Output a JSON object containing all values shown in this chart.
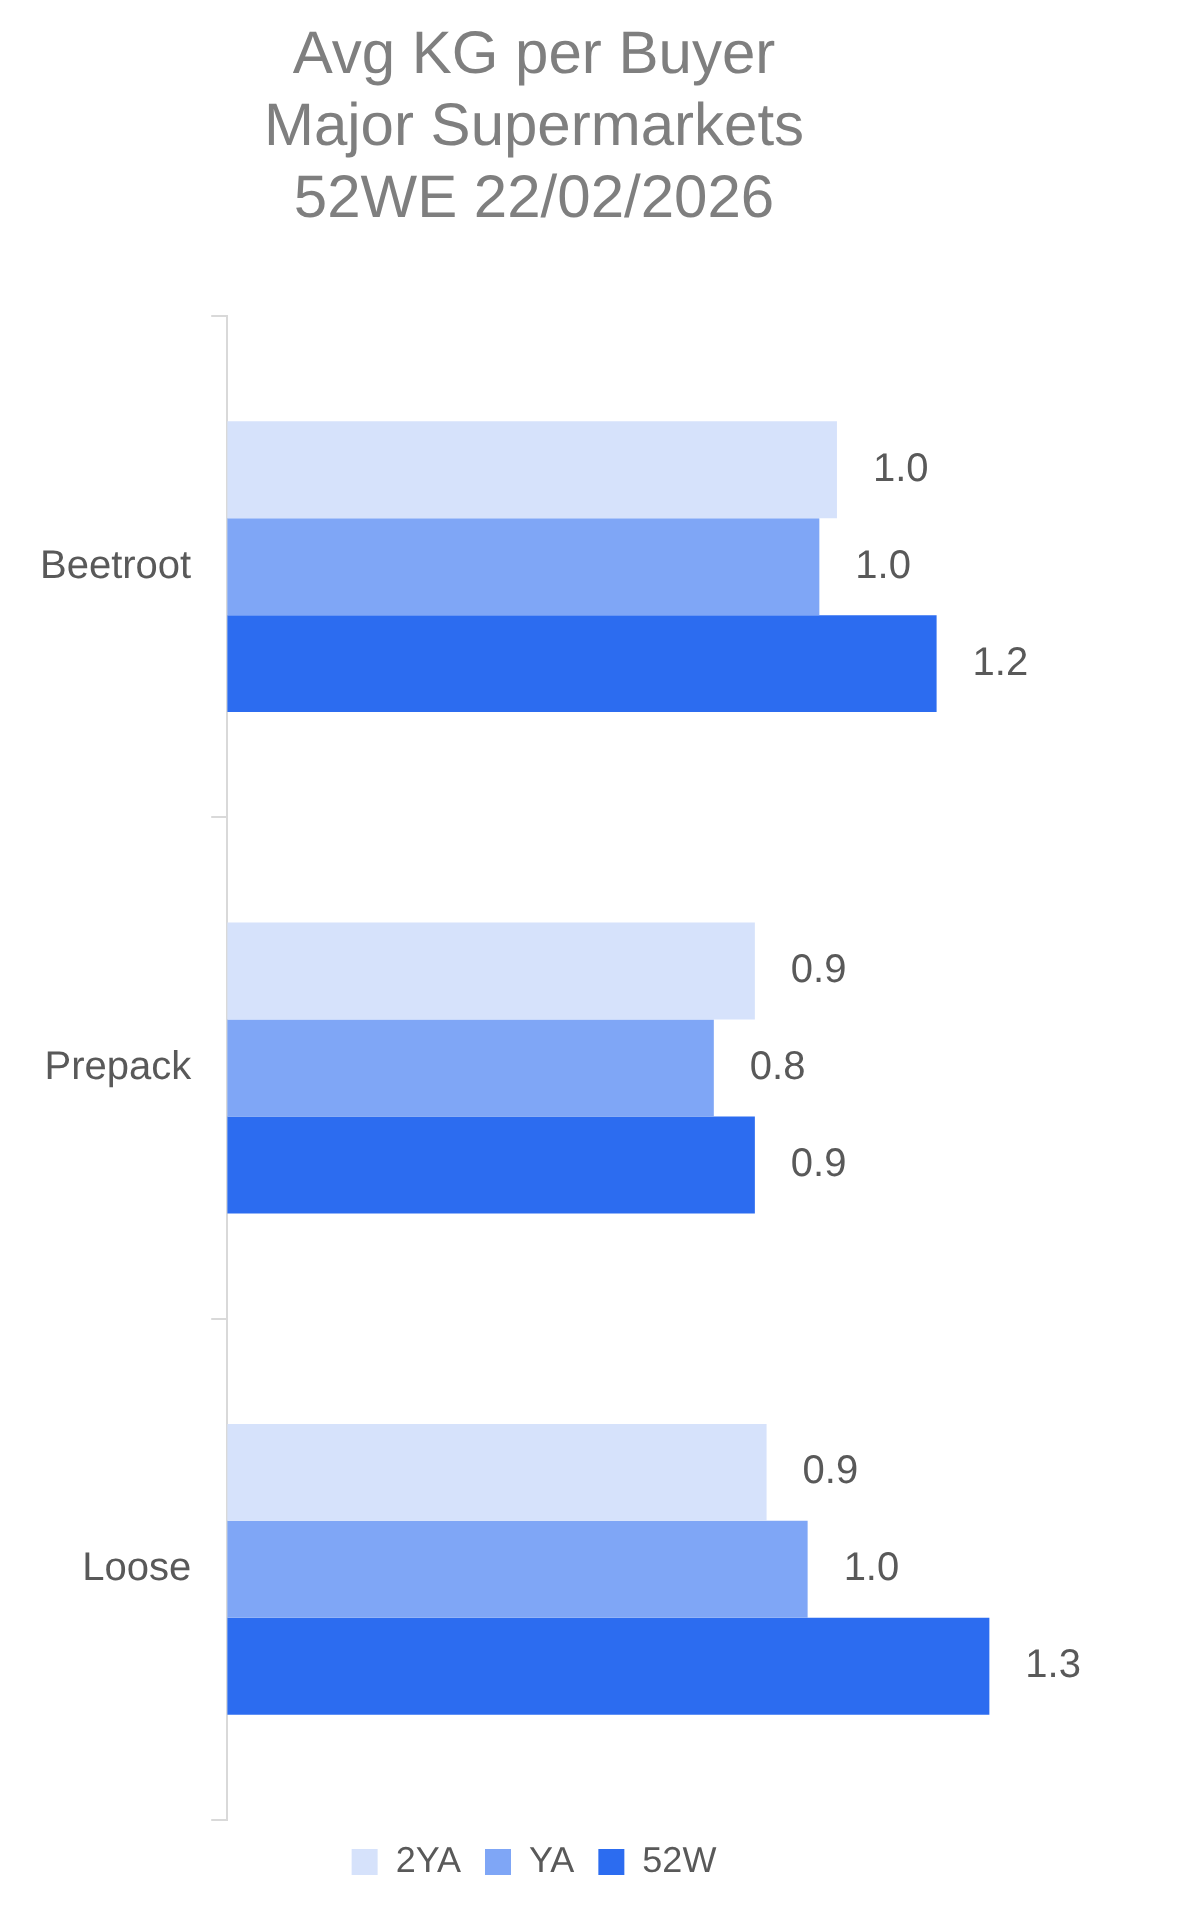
{
  "chart_data": {
    "type": "bar",
    "orientation": "horizontal",
    "title": "Avg KG per Buyer\nMajor Supermarkets\n52WE 22/02/2026",
    "categories": [
      "Beetroot",
      "Prepack",
      "Loose"
    ],
    "tick_labels": "y",
    "legend": "bottom",
    "series": [
      {
        "name": "2YA",
        "color": "#d6e2fb",
        "values": [
          1.04,
          0.9,
          0.92
        ],
        "value_labels": [
          "1.0",
          "0.9",
          "0.9"
        ]
      },
      {
        "name": "YA",
        "color": "#7fa6f6",
        "values": [
          1.01,
          0.83,
          0.99
        ],
        "value_labels": [
          "1.0",
          "0.8",
          "1.0"
        ]
      },
      {
        "name": "52W",
        "color": "#2c6cf0",
        "values": [
          1.21,
          0.9,
          1.3
        ],
        "value_labels": [
          "1.2",
          "0.9",
          "1.3"
        ]
      }
    ]
  }
}
